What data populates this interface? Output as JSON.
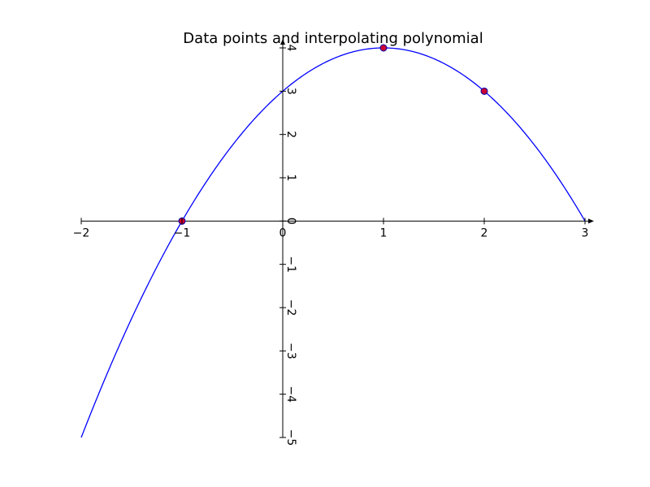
{
  "chart_data": {
    "type": "line",
    "title": "Data points and interpolating polynomial",
    "xlabel": "",
    "ylabel": "",
    "xlim": [
      -2,
      3
    ],
    "ylim": [
      -5,
      4
    ],
    "grid": false,
    "x_ticks": [
      -2,
      -1,
      0,
      1,
      2,
      3
    ],
    "y_ticks": [
      -5,
      -4,
      -3,
      -2,
      -1,
      0,
      1,
      2,
      3,
      4
    ],
    "x_tick_labels": [
      "−2",
      "−1",
      "0",
      "1",
      "2",
      "3"
    ],
    "y_tick_labels": [
      "−5",
      "−4",
      "−3",
      "−2",
      "−1",
      "0",
      "1",
      "2",
      "3",
      "4"
    ],
    "series": [
      {
        "type": "line",
        "color": "#0000ff",
        "polynomial_coefficients_high_to_low": [
          -1,
          2,
          3
        ]
      },
      {
        "type": "scatter",
        "color": "#cc0033",
        "edge_color": "#0000aa",
        "x": [
          -1,
          1,
          2
        ],
        "y": [
          0,
          4,
          3
        ]
      }
    ]
  }
}
